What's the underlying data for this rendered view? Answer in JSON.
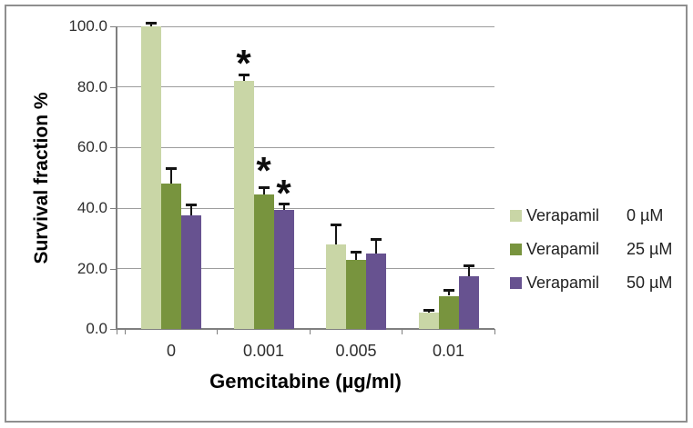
{
  "chart_data": {
    "type": "bar",
    "title": "",
    "xlabel": "Gemcitabine (µg/ml)",
    "ylabel": "Survival fraction %",
    "categories": [
      "0",
      "0.001",
      "0.005",
      "0.01"
    ],
    "series": [
      {
        "name": "Verapamil 0 µM",
        "legend_label": "Verapamil",
        "legend_dose": "0 µM",
        "color": "#c9d6a6",
        "values": [
          100,
          82,
          28,
          5.5
        ],
        "errors": [
          1,
          2,
          6.5,
          0.7
        ]
      },
      {
        "name": "Verapamil 25 µM",
        "legend_label": "Verapamil",
        "legend_dose": "25 µM",
        "color": "#78943e",
        "values": [
          48,
          44.5,
          23,
          11
        ],
        "errors": [
          5,
          2.3,
          2.6,
          1.7
        ]
      },
      {
        "name": "Verapamil 50 µM",
        "legend_label": "Verapamil",
        "legend_dose": "50 µM",
        "color": "#675290",
        "values": [
          37.5,
          39.5,
          25,
          17.5
        ],
        "errors": [
          3.6,
          1.8,
          4.6,
          3.4
        ]
      }
    ],
    "yticks": [
      "0.0",
      "20.0",
      "40.0",
      "60.0",
      "80.0",
      "100.0"
    ],
    "ylim": [
      0,
      100
    ],
    "grid": true,
    "legend_position": "right",
    "annotations": [
      {
        "text": "*",
        "series_index": 0,
        "category_index": 1,
        "value": 87
      },
      {
        "text": "*",
        "series_index": 1,
        "category_index": 1,
        "value": 51.5
      },
      {
        "text": "*",
        "series_index": 2,
        "category_index": 1,
        "value": 44
      }
    ]
  },
  "colors": {
    "frame_border": "#8f8f8f",
    "gridline": "#9d9d9d",
    "axis": "#7f7f7f",
    "error_bar": "#141414",
    "tick_label": "#2e2e2e",
    "background": "#ffffff"
  }
}
